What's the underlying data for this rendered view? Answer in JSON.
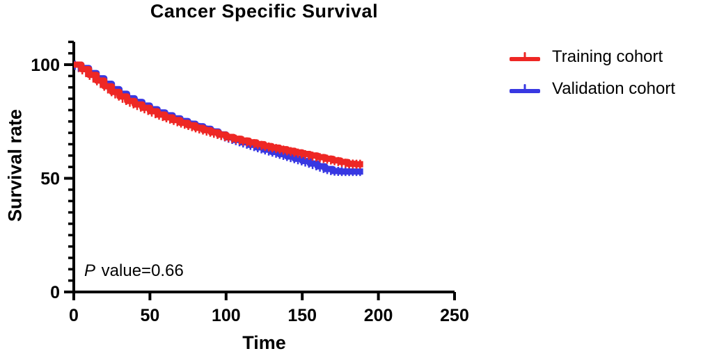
{
  "chart_data": {
    "type": "line",
    "subtype": "kaplan-meier-step",
    "title": "Cancer Specific Survival",
    "xlabel": "Time",
    "ylabel": "Survival rate",
    "xlim": [
      0,
      250
    ],
    "ylim": [
      0,
      110
    ],
    "x_ticks": [
      0,
      50,
      100,
      150,
      200,
      250
    ],
    "y_ticks": [
      0,
      50,
      100
    ],
    "y_minor_step": 5,
    "grid": "off",
    "legend_position": "right",
    "annotation_text": "P value=0.66",
    "axis_color": "#000000",
    "series": [
      {
        "name": "Training cohort",
        "color": "#ee2724",
        "times": [
          0,
          5,
          10,
          15,
          20,
          25,
          30,
          35,
          40,
          45,
          50,
          55,
          60,
          65,
          70,
          75,
          80,
          85,
          90,
          95,
          100,
          105,
          110,
          115,
          120,
          125,
          130,
          135,
          140,
          145,
          150,
          155,
          160,
          165,
          170,
          175,
          180,
          185,
          190
        ],
        "values": [
          100,
          98,
          95.5,
          93,
          90.5,
          88,
          86,
          84,
          82.5,
          81,
          79.5,
          78,
          76.8,
          75.6,
          74.4,
          73.3,
          72.2,
          71.2,
          70.2,
          69.2,
          68.2,
          67.4,
          66.6,
          65.8,
          65,
          64.2,
          63.5,
          62.8,
          62.1,
          61.4,
          60.7,
          60,
          59.3,
          58.6,
          57.9,
          57.2,
          56.4,
          56.2,
          56.2
        ]
      },
      {
        "name": "Validation cohort",
        "color": "#3838e2",
        "times": [
          0,
          5,
          10,
          15,
          20,
          25,
          30,
          35,
          40,
          45,
          50,
          55,
          60,
          65,
          70,
          75,
          80,
          85,
          90,
          95,
          100,
          105,
          110,
          115,
          120,
          125,
          130,
          135,
          140,
          145,
          150,
          155,
          160,
          165,
          170,
          175,
          180,
          185,
          190
        ],
        "values": [
          100,
          98.5,
          96.3,
          94,
          91.6,
          89.2,
          87.2,
          85.2,
          83.6,
          82,
          80.4,
          79,
          77.7,
          76.4,
          75.2,
          74,
          72.9,
          71.8,
          70.6,
          69.3,
          68,
          66.9,
          65.8,
          64.7,
          63.6,
          62.6,
          61.6,
          60.6,
          59.6,
          58.6,
          57.6,
          56.5,
          55.3,
          54.1,
          53.2,
          53,
          53,
          53,
          53
        ]
      }
    ]
  },
  "annotation": {
    "p_italic": "P",
    "p_rest": " value=0.66"
  }
}
